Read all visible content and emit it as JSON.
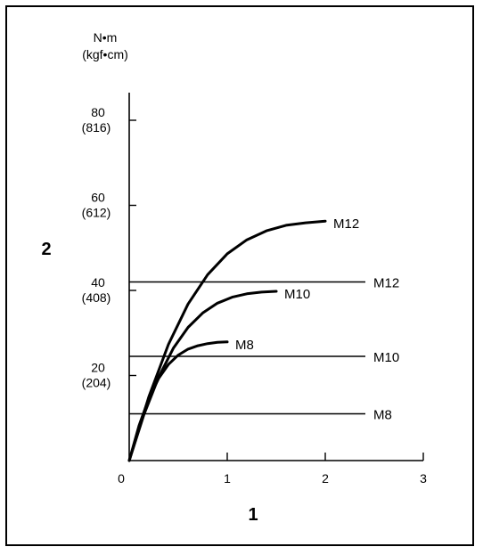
{
  "chart_data": {
    "type": "line",
    "y_unit_line1": "N•m",
    "y_unit_line2": "(kgf•cm)",
    "xlabel": "1",
    "ylabel": "2",
    "xlim": [
      0,
      3
    ],
    "ylim": [
      0,
      86
    ],
    "x_ticks": [
      "0",
      "1",
      "2",
      "3"
    ],
    "x_tick_values": [
      0,
      1,
      2,
      3
    ],
    "y_ticks": [
      {
        "value": 20,
        "label": "20",
        "sub": "(204)"
      },
      {
        "value": 40,
        "label": "40",
        "sub": "(408)"
      },
      {
        "value": 60,
        "label": "60",
        "sub": "(612)"
      },
      {
        "value": 80,
        "label": "80",
        "sub": "(816)"
      }
    ],
    "series": [
      {
        "name": "M8",
        "x": [
          0,
          0.1,
          0.2,
          0.3,
          0.4,
          0.5,
          0.6,
          0.7,
          0.8,
          0.9,
          1.0
        ],
        "y": [
          0,
          8.2,
          14.6,
          19.3,
          22.6,
          24.8,
          26.2,
          27.0,
          27.5,
          27.8,
          27.9
        ]
      },
      {
        "name": "M10",
        "x": [
          0,
          0.15,
          0.3,
          0.45,
          0.6,
          0.75,
          0.9,
          1.05,
          1.2,
          1.35,
          1.5
        ],
        "y": [
          0,
          10.8,
          19.6,
          26.4,
          31.3,
          34.7,
          37.0,
          38.4,
          39.2,
          39.6,
          39.8
        ]
      },
      {
        "name": "M12",
        "x": [
          0,
          0.2,
          0.4,
          0.6,
          0.8,
          1.0,
          1.2,
          1.4,
          1.6,
          1.8,
          2.0
        ],
        "y": [
          0,
          15.0,
          27.3,
          36.8,
          43.7,
          48.6,
          51.9,
          54.0,
          55.3,
          55.9,
          56.3
        ]
      }
    ],
    "reference_lines": [
      {
        "name": "M12",
        "y": 42
      },
      {
        "name": "M10",
        "y": 24.5
      },
      {
        "name": "M8",
        "y": 11
      }
    ]
  }
}
